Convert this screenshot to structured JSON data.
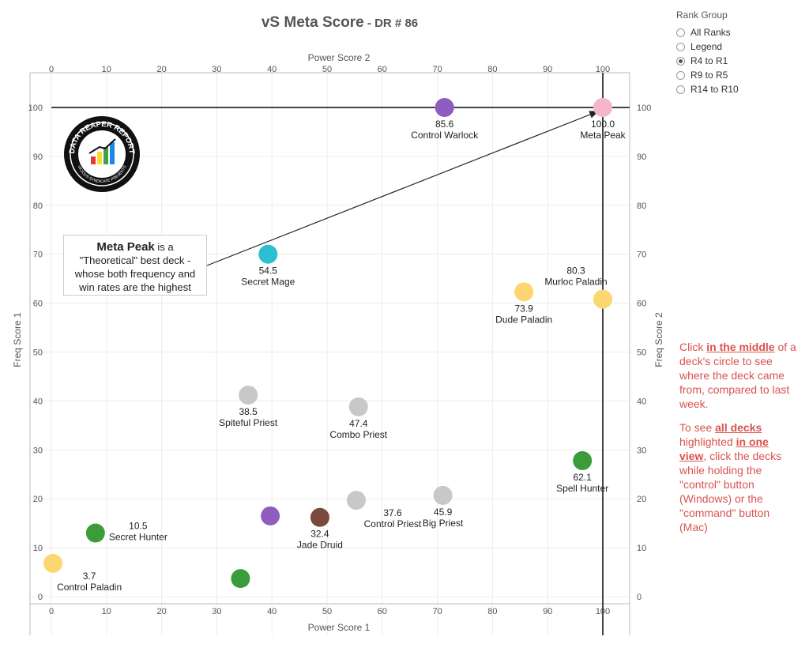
{
  "title": {
    "main": "vS Meta Score",
    "sub": " - DR # 86"
  },
  "rank_group": {
    "title": "Rank Group",
    "options": [
      {
        "label": "All Ranks",
        "selected": false
      },
      {
        "label": "Legend",
        "selected": false
      },
      {
        "label": "R4 to R1",
        "selected": true
      },
      {
        "label": "R9 to R5",
        "selected": false
      },
      {
        "label": "R14 to R10",
        "selected": false
      }
    ]
  },
  "callout": {
    "bold": "Meta Peak",
    "line1_rest": " is a",
    "line2": "\"Theoretical\" best deck -",
    "line3": "whose both frequency and",
    "line4": "win rates are the highest"
  },
  "logo": {
    "text_top": "DATA REAPER REPORT",
    "text_bottom": "VICIOUS SYNDICATE PRESENTS",
    "colors": [
      "#e53935",
      "#fdd835",
      "#43a047",
      "#1e88e5"
    ]
  },
  "instructions": {
    "p1_a": "Click ",
    "p1_b": "in the middle",
    "p1_c": " of a deck's circle to see where the deck came from, compared to last week.",
    "p2_a": "To see ",
    "p2_b": "all decks ",
    "p2_c": " highlighted ",
    "p2_d": "in one view",
    "p2_e": ", click the decks while holding the \"control\" button (Windows) or the \"command\" button (Mac)"
  },
  "chart_data": {
    "type": "scatter",
    "xlabel_bottom": "Power Score 1",
    "xlabel_top": "Power Score 2",
    "ylabel_left": "Freq Score 1",
    "ylabel_right": "Freq Score 2",
    "xlim": [
      0,
      105
    ],
    "ylim": [
      0,
      105
    ],
    "xticks": [
      0,
      10,
      20,
      30,
      40,
      50,
      60,
      70,
      80,
      90,
      100
    ],
    "yticks": [
      0,
      10,
      20,
      30,
      40,
      50,
      60,
      70,
      80,
      90,
      100
    ],
    "points": [
      {
        "x": 100.0,
        "y": 100.0,
        "color": "#f4b6cc",
        "score": "100.0",
        "name": "Meta Peak",
        "label_pos": "below"
      },
      {
        "x": 71.3,
        "y": 100.0,
        "color": "#8e5dbf",
        "score": "85.6",
        "name": "Control Warlock",
        "label_pos": "below"
      },
      {
        "x": 39.3,
        "y": 70.0,
        "color": "#2bbfd0",
        "score": "54.5",
        "name": "Secret Mage",
        "label_pos": "below"
      },
      {
        "x": 85.7,
        "y": 62.3,
        "color": "#fcd670",
        "score": "73.9",
        "name": "Dude Paladin",
        "label_pos": "below"
      },
      {
        "x": 100.0,
        "y": 60.8,
        "color": "#fcd670",
        "score": "80.3",
        "name": "Murloc Paladin",
        "label_pos": "above-left"
      },
      {
        "x": 35.7,
        "y": 41.2,
        "color": "#c8c8c8",
        "score": "38.5",
        "name": "Spiteful Priest",
        "label_pos": "below"
      },
      {
        "x": 55.7,
        "y": 38.8,
        "color": "#c8c8c8",
        "score": "47.4",
        "name": "Combo Priest",
        "label_pos": "below"
      },
      {
        "x": 96.3,
        "y": 27.8,
        "color": "#3a9d3a",
        "score": "62.1",
        "name": "Spell Hunter",
        "label_pos": "below"
      },
      {
        "x": 71.0,
        "y": 20.7,
        "color": "#c8c8c8",
        "score": "45.9",
        "name": "Big Priest",
        "label_pos": "below"
      },
      {
        "x": 55.3,
        "y": 19.7,
        "color": "#c8c8c8",
        "score": "37.6",
        "name": "Control Priest",
        "label_pos": "below-right"
      },
      {
        "x": 48.7,
        "y": 16.2,
        "color": "#7b4a3e",
        "score": "32.4",
        "name": "Jade Druid",
        "label_pos": "below"
      },
      {
        "x": 39.7,
        "y": 16.5,
        "color": "#8e5dbf",
        "score": "",
        "name": "",
        "label_pos": "none"
      },
      {
        "x": 8.0,
        "y": 13.0,
        "color": "#3a9d3a",
        "score": "10.5",
        "name": "Secret Hunter",
        "label_pos": "right"
      },
      {
        "x": 0.3,
        "y": 6.8,
        "color": "#fcd670",
        "score": "3.7",
        "name": "Control Paladin",
        "label_pos": "below-right"
      },
      {
        "x": 34.3,
        "y": 3.7,
        "color": "#3a9d3a",
        "score": "",
        "name": "",
        "label_pos": "none"
      }
    ]
  }
}
